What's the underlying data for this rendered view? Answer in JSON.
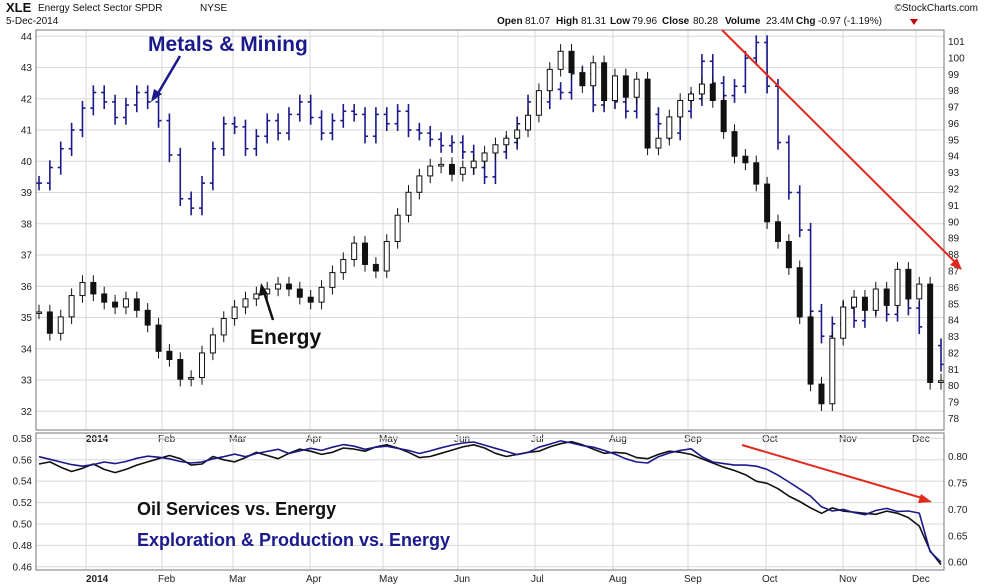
{
  "header": {
    "symbol": "XLE",
    "name": "Energy Select Sector SPDR",
    "exchange": "NYSE",
    "date": "5-Dec-2014",
    "open_label": "Open",
    "open": "81.07",
    "high_label": "High",
    "high": "81.31",
    "low_label": "Low",
    "low": "79.96",
    "close_label": "Close",
    "close": "80.28",
    "volume_label": "Volume",
    "volume": "23.4M",
    "chg_label": "Chg",
    "chg": "-0.97 (-1.19%)",
    "brand": "©StockCharts.com",
    "chg_color": "#cc0000"
  },
  "chart_data": [
    {
      "type": "bar",
      "annotations": {
        "metals": "Metals & Mining",
        "energy": "Energy"
      },
      "x_ticks": [
        "2014",
        "Feb",
        "Mar",
        "Apr",
        "May",
        "Jun",
        "Jul",
        "Aug",
        "Sep",
        "Oct",
        "Nov",
        "Dec"
      ],
      "left_axis": {
        "ylim": [
          31.4,
          44.2
        ],
        "ticks": [
          32,
          33,
          34,
          35,
          36,
          37,
          38,
          39,
          40,
          41,
          42,
          43,
          44
        ]
      },
      "right_axis": {
        "ylim": [
          77.3,
          101.7
        ],
        "ticks": [
          78,
          79,
          80,
          81,
          82,
          83,
          84,
          85,
          86,
          87,
          88,
          89,
          90,
          91,
          92,
          93,
          94,
          95,
          96,
          97,
          98,
          99,
          100,
          101
        ]
      },
      "series": [
        {
          "name": "Metals & Mining",
          "axis": "left",
          "color": "#1a1a8c",
          "style": "ohlc",
          "values": [
            39.3,
            39.8,
            40.4,
            41.0,
            41.7,
            42.2,
            41.9,
            41.4,
            41.8,
            42.2,
            41.9,
            41.3,
            40.2,
            38.8,
            38.5,
            39.3,
            40.4,
            41.2,
            41.1,
            40.4,
            40.8,
            41.3,
            40.9,
            41.5,
            41.9,
            41.4,
            40.9,
            41.3,
            41.6,
            41.5,
            40.8,
            41.5,
            41.2,
            41.6,
            41.0,
            40.9,
            40.7,
            40.5,
            40.6,
            40.3,
            39.8,
            39.5,
            40.3,
            40.6,
            41.2,
            41.9,
            41.9,
            42.3,
            42.2,
            42.8,
            42.8,
            41.8,
            42.2,
            41.9,
            41.6,
            42.1,
            41.5,
            41.2,
            40.9,
            41.6,
            42.0,
            43.2,
            42.5,
            42.1,
            42.4,
            43.3,
            43.8,
            42.4,
            40.6,
            39.0,
            37.8,
            35.2,
            34.4,
            34.8,
            35.3,
            34.9,
            35.3,
            35.5,
            35.1,
            35.6,
            35.3,
            34.7,
            34.1,
            33.5
          ]
        },
        {
          "name": "Energy",
          "axis": "right",
          "color": "#111111",
          "style": "candle",
          "values": [
            84.5,
            83.2,
            84.2,
            85.5,
            86.3,
            85.6,
            85.1,
            84.8,
            85.3,
            84.6,
            83.7,
            82.1,
            81.6,
            80.4,
            80.5,
            82.0,
            83.1,
            84.1,
            84.8,
            85.3,
            85.6,
            85.9,
            86.2,
            85.9,
            85.4,
            85.1,
            86.0,
            86.9,
            87.7,
            88.7,
            87.4,
            87.0,
            88.8,
            90.4,
            91.8,
            92.8,
            93.4,
            93.5,
            92.9,
            93.3,
            93.7,
            94.2,
            94.7,
            95.1,
            95.6,
            96.5,
            98.0,
            99.3,
            100.4,
            99.1,
            98.3,
            99.7,
            97.4,
            98.9,
            97.6,
            98.7,
            94.5,
            95.1,
            96.4,
            97.4,
            97.8,
            98.4,
            97.4,
            95.5,
            94.0,
            93.6,
            92.3,
            90.0,
            88.8,
            87.2,
            84.2,
            80.1,
            78.9,
            82.9,
            84.8,
            85.4,
            84.6,
            85.9,
            84.9,
            87.1,
            85.3,
            86.2,
            80.2,
            80.3
          ]
        }
      ]
    },
    {
      "type": "line",
      "annotations": {
        "oil": "Oil Services vs. Energy",
        "ep": "Exploration & Production vs. Energy"
      },
      "x_ticks": [
        "2014",
        "Feb",
        "Mar",
        "Apr",
        "May",
        "Jun",
        "Jul",
        "Aug",
        "Sep",
        "Oct",
        "Nov",
        "Dec"
      ],
      "left_axis": {
        "ylim": [
          0.457,
          0.585
        ],
        "ticks": [
          0.46,
          0.48,
          0.5,
          0.52,
          0.54,
          0.56,
          0.58
        ]
      },
      "right_axis": {
        "ylim": [
          0.585,
          0.845
        ],
        "ticks": [
          0.6,
          0.65,
          0.7,
          0.75,
          0.8
        ]
      },
      "series": [
        {
          "name": "Oil Services vs. Energy",
          "axis": "left",
          "color": "#111111",
          "values": [
            0.556,
            0.558,
            0.553,
            0.549,
            0.552,
            0.556,
            0.551,
            0.548,
            0.551,
            0.555,
            0.558,
            0.561,
            0.564,
            0.561,
            0.555,
            0.556,
            0.563,
            0.56,
            0.558,
            0.562,
            0.567,
            0.564,
            0.561,
            0.566,
            0.57,
            0.568,
            0.565,
            0.567,
            0.571,
            0.57,
            0.568,
            0.572,
            0.574,
            0.571,
            0.567,
            0.562,
            0.563,
            0.566,
            0.569,
            0.572,
            0.574,
            0.571,
            0.566,
            0.563,
            0.565,
            0.567,
            0.568,
            0.572,
            0.575,
            0.577,
            0.574,
            0.57,
            0.566,
            0.567,
            0.566,
            0.562,
            0.561,
            0.565,
            0.568,
            0.567,
            0.565,
            0.561,
            0.557,
            0.553,
            0.55,
            0.546,
            0.54,
            0.538,
            0.533,
            0.526,
            0.521,
            0.515,
            0.51,
            0.515,
            0.512,
            0.511,
            0.51,
            0.509,
            0.512,
            0.51,
            0.506,
            0.498,
            0.475,
            0.462
          ]
        },
        {
          "name": "Exploration & Production vs. Energy",
          "axis": "right",
          "color": "#1a1a8c",
          "values": [
            0.8,
            0.795,
            0.79,
            0.785,
            0.782,
            0.785,
            0.79,
            0.787,
            0.791,
            0.797,
            0.801,
            0.799,
            0.796,
            0.791,
            0.788,
            0.79,
            0.796,
            0.8,
            0.805,
            0.8,
            0.806,
            0.81,
            0.814,
            0.806,
            0.811,
            0.816,
            0.812,
            0.818,
            0.823,
            0.82,
            0.814,
            0.818,
            0.82,
            0.816,
            0.812,
            0.806,
            0.811,
            0.817,
            0.822,
            0.826,
            0.828,
            0.822,
            0.816,
            0.81,
            0.804,
            0.808,
            0.818,
            0.824,
            0.83,
            0.826,
            0.821,
            0.818,
            0.812,
            0.805,
            0.796,
            0.79,
            0.788,
            0.8,
            0.807,
            0.812,
            0.815,
            0.8,
            0.79,
            0.787,
            0.784,
            0.784,
            0.782,
            0.776,
            0.765,
            0.752,
            0.739,
            0.725,
            0.705,
            0.697,
            0.7,
            0.694,
            0.69,
            0.698,
            0.702,
            0.696,
            0.697,
            0.693,
            0.62,
            0.6
          ]
        }
      ]
    }
  ]
}
